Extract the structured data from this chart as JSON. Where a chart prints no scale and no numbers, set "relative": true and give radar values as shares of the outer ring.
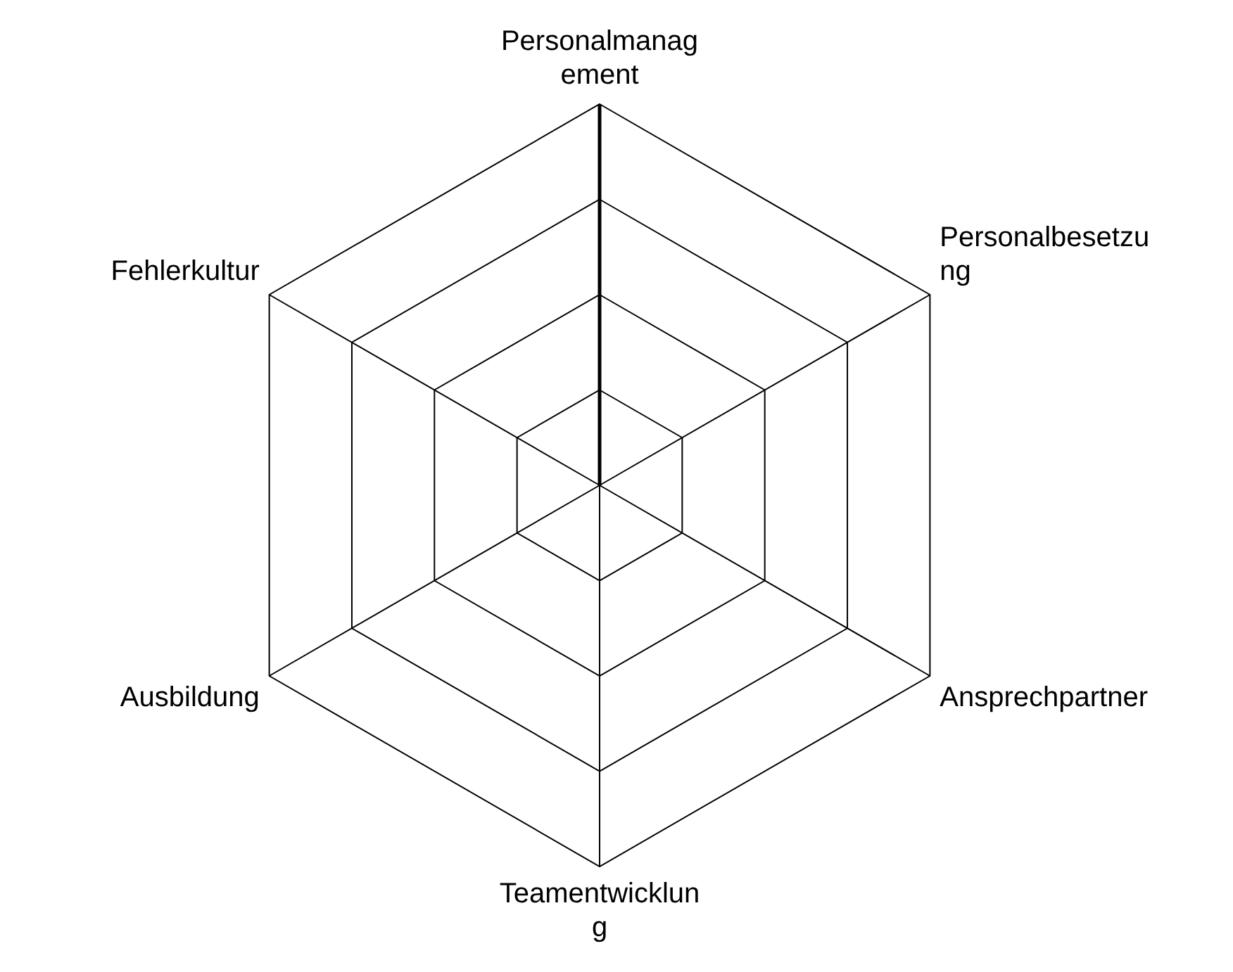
{
  "chart_data": {
    "type": "radar",
    "categories": [
      "Personalmanagement",
      "Personalbesetzung",
      "Ansprechpartner",
      "Teamentwicklung",
      "Ausbildung",
      "Fehlerkultur"
    ],
    "relative": true,
    "grid": true,
    "legend": false,
    "marker": "none",
    "series": [
      {
        "color": "#000000",
        "values": [
          1,
          0,
          0,
          0,
          0,
          0
        ]
      }
    ]
  }
}
